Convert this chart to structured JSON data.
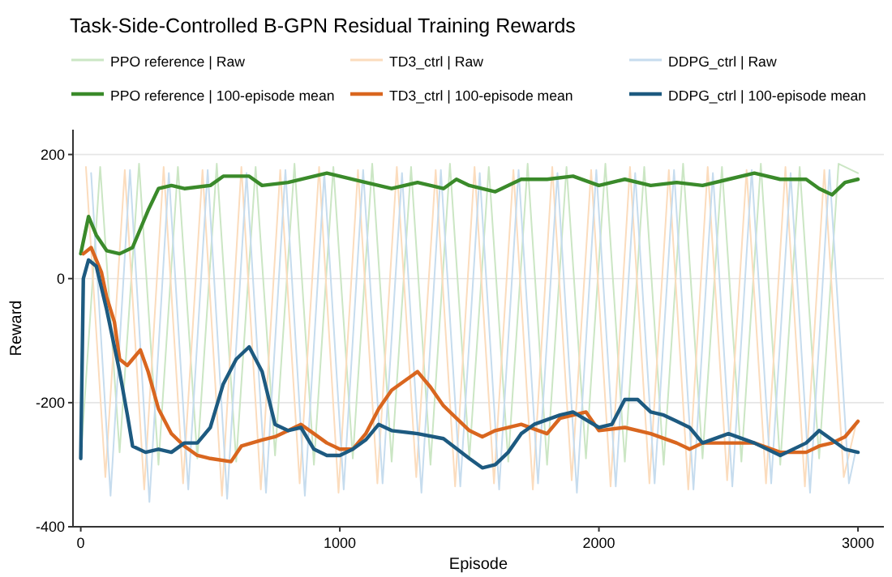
{
  "chart_data": {
    "type": "line",
    "title": "Task-Side-Controlled B-GPN Residual Training Rewards",
    "xlabel": "Episode",
    "ylabel": "Reward",
    "xlim": [
      -30,
      3100
    ],
    "ylim": [
      -400,
      240
    ],
    "xticks": [
      0,
      1000,
      2000,
      3000
    ],
    "yticks": [
      -400,
      -200,
      0,
      200
    ],
    "grid": "y",
    "legend": "top",
    "line_style": "solid",
    "marker": "none",
    "series": [
      {
        "name": "PPO reference | Raw",
        "color": "#cbe6c4",
        "x": [
          0,
          75,
          150,
          225,
          300,
          375,
          450,
          525,
          600,
          675,
          750,
          825,
          900,
          975,
          1050,
          1125,
          1200,
          1275,
          1350,
          1425,
          1500,
          1575,
          1650,
          1725,
          1800,
          1875,
          1950,
          2025,
          2100,
          2175,
          2250,
          2325,
          2400,
          2475,
          2550,
          2625,
          2700,
          2775,
          2850,
          2925,
          3000
        ],
        "values": [
          -290,
          180,
          -280,
          185,
          -300,
          180,
          -290,
          185,
          -295,
          180,
          -285,
          185,
          -300,
          180,
          -290,
          185,
          -295,
          180,
          -300,
          185,
          -290,
          180,
          -295,
          185,
          -300,
          180,
          -290,
          185,
          -295,
          180,
          -300,
          185,
          -290,
          180,
          -295,
          185,
          -300,
          180,
          -290,
          185,
          170
        ]
      },
      {
        "name": "TD3_ctrl | Raw",
        "color": "#fbdcbd",
        "x": [
          20,
          95,
          170,
          245,
          320,
          395,
          470,
          545,
          620,
          695,
          770,
          845,
          920,
          995,
          1070,
          1145,
          1220,
          1295,
          1370,
          1445,
          1520,
          1595,
          1670,
          1745,
          1820,
          1895,
          1970,
          2045,
          2120,
          2195,
          2270,
          2345,
          2420,
          2495,
          2570,
          2645,
          2720,
          2795,
          2870,
          2945,
          2995
        ],
        "values": [
          180,
          -320,
          175,
          -340,
          180,
          -330,
          175,
          -350,
          180,
          -340,
          175,
          -330,
          180,
          -345,
          175,
          -330,
          180,
          -320,
          175,
          -335,
          180,
          -330,
          175,
          -340,
          180,
          -325,
          175,
          -335,
          180,
          -330,
          175,
          -340,
          180,
          -325,
          175,
          -330,
          180,
          -335,
          175,
          -320,
          -230
        ]
      },
      {
        "name": "DDPG_ctrl | Raw",
        "color": "#c6dcee",
        "x": [
          40,
          115,
          190,
          265,
          340,
          415,
          490,
          565,
          640,
          715,
          790,
          865,
          940,
          1015,
          1090,
          1165,
          1240,
          1315,
          1390,
          1465,
          1540,
          1615,
          1690,
          1765,
          1840,
          1915,
          1990,
          2065,
          2140,
          2215,
          2290,
          2365,
          2440,
          2515,
          2590,
          2665,
          2740,
          2815,
          2890,
          2965,
          2990
        ],
        "values": [
          170,
          -350,
          175,
          -360,
          170,
          -340,
          175,
          -355,
          170,
          -345,
          175,
          -350,
          170,
          -340,
          175,
          -330,
          170,
          -345,
          175,
          -335,
          170,
          -340,
          175,
          -330,
          170,
          -345,
          175,
          -335,
          170,
          -330,
          175,
          -340,
          170,
          -335,
          175,
          -330,
          170,
          -345,
          175,
          -330,
          -280
        ]
      },
      {
        "name": "PPO reference | 100-episode mean",
        "color": "#3a8a2a",
        "x": [
          0,
          10,
          30,
          60,
          100,
          150,
          200,
          230,
          260,
          300,
          350,
          400,
          500,
          550,
          650,
          700,
          800,
          950,
          1100,
          1200,
          1300,
          1400,
          1450,
          1500,
          1600,
          1700,
          1800,
          1900,
          2000,
          2100,
          2200,
          2300,
          2400,
          2500,
          2600,
          2700,
          2800,
          2850,
          2900,
          2950,
          3000
        ],
        "values": [
          40,
          60,
          100,
          70,
          45,
          40,
          50,
          80,
          110,
          145,
          150,
          145,
          150,
          165,
          165,
          150,
          155,
          170,
          155,
          145,
          155,
          145,
          160,
          150,
          140,
          160,
          160,
          165,
          150,
          160,
          150,
          155,
          150,
          160,
          170,
          160,
          160,
          145,
          135,
          155,
          160
        ]
      },
      {
        "name": "TD3_ctrl | 100-episode mean",
        "color": "#d9661f",
        "x": [
          10,
          40,
          80,
          100,
          130,
          150,
          180,
          200,
          230,
          260,
          300,
          350,
          400,
          450,
          500,
          580,
          620,
          700,
          750,
          850,
          900,
          950,
          1000,
          1050,
          1100,
          1150,
          1200,
          1250,
          1300,
          1350,
          1400,
          1500,
          1550,
          1600,
          1700,
          1800,
          1850,
          1950,
          2000,
          2100,
          2200,
          2300,
          2350,
          2400,
          2500,
          2600,
          2700,
          2800,
          2850,
          2900,
          2950,
          3000
        ],
        "values": [
          40,
          50,
          10,
          -30,
          -70,
          -130,
          -140,
          -130,
          -115,
          -150,
          -210,
          -250,
          -270,
          -285,
          -290,
          -295,
          -270,
          -260,
          -255,
          -235,
          -250,
          -265,
          -275,
          -275,
          -250,
          -210,
          -180,
          -165,
          -150,
          -175,
          -205,
          -245,
          -255,
          -245,
          -235,
          -250,
          -225,
          -215,
          -245,
          -240,
          -250,
          -265,
          -275,
          -265,
          -265,
          -265,
          -280,
          -280,
          -270,
          -265,
          -255,
          -230
        ]
      },
      {
        "name": "DDPG_ctrl | 100-episode mean",
        "color": "#1d5a80",
        "x": [
          0,
          10,
          30,
          60,
          100,
          150,
          180,
          200,
          250,
          300,
          350,
          400,
          450,
          500,
          550,
          600,
          650,
          700,
          750,
          800,
          850,
          900,
          950,
          1000,
          1050,
          1100,
          1150,
          1200,
          1300,
          1400,
          1500,
          1550,
          1600,
          1650,
          1700,
          1750,
          1850,
          1900,
          2000,
          2050,
          2100,
          2150,
          2200,
          2250,
          2300,
          2350,
          2400,
          2500,
          2600,
          2700,
          2800,
          2850,
          2900,
          2950,
          3000
        ],
        "values": [
          -290,
          0,
          30,
          20,
          -50,
          -150,
          -220,
          -270,
          -280,
          -275,
          -280,
          -265,
          -265,
          -240,
          -170,
          -130,
          -110,
          -150,
          -235,
          -245,
          -240,
          -275,
          -285,
          -285,
          -275,
          -260,
          -235,
          -245,
          -250,
          -258,
          -290,
          -305,
          -300,
          -280,
          -250,
          -235,
          -220,
          -215,
          -240,
          -235,
          -195,
          -195,
          -215,
          -220,
          -230,
          -240,
          -265,
          -250,
          -265,
          -285,
          -265,
          -245,
          -260,
          -275,
          -280
        ]
      }
    ]
  }
}
